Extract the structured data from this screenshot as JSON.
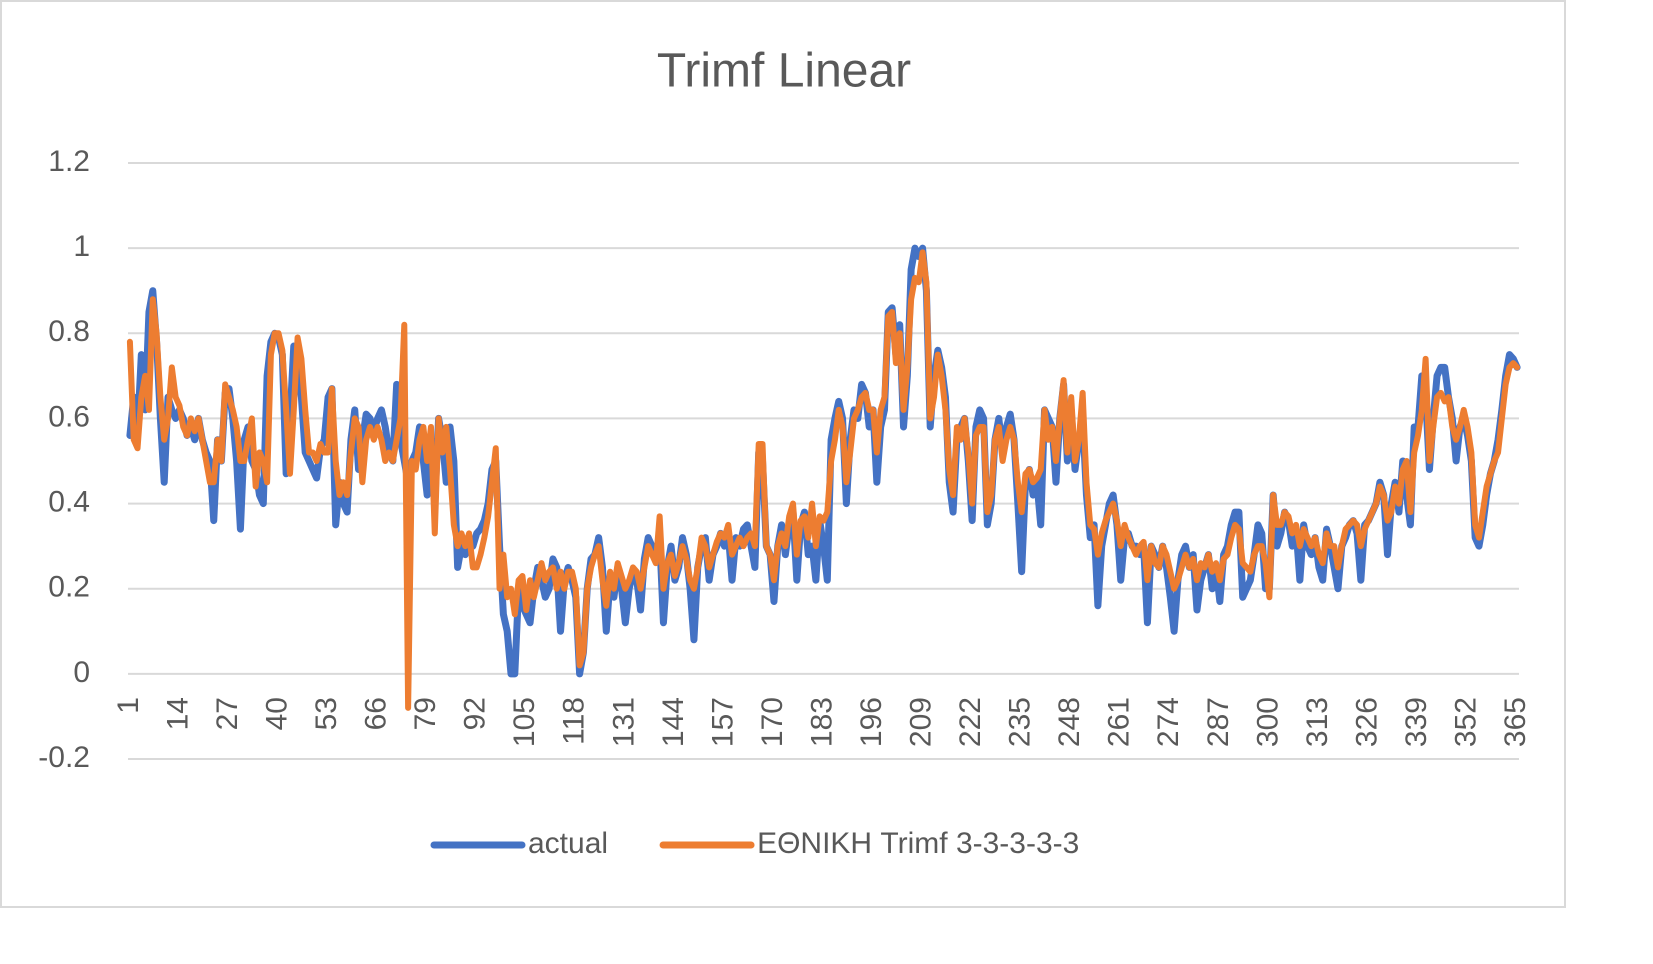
{
  "chart_data": {
    "type": "line",
    "title": "Trimf Linear",
    "categories": [
      "1",
      null,
      null,
      null,
      null,
      null,
      null,
      null,
      null,
      null,
      null,
      null,
      null,
      "14",
      null,
      null,
      null,
      null,
      null,
      null,
      null,
      null,
      null,
      null,
      null,
      null,
      "27",
      null,
      null,
      null,
      null,
      null,
      null,
      null,
      null,
      null,
      null,
      null,
      null,
      "40",
      null,
      null,
      null,
      null,
      null,
      null,
      null,
      null,
      null,
      null,
      null,
      null,
      "53",
      null,
      null,
      null,
      null,
      null,
      null,
      null,
      null,
      null,
      null,
      null,
      null,
      "66",
      null,
      null,
      null,
      null,
      null,
      null,
      null,
      null,
      null,
      null,
      null,
      null,
      "79",
      null,
      null,
      null,
      null,
      null,
      null,
      null,
      null,
      null,
      null,
      null,
      null,
      "92",
      null,
      null,
      null,
      null,
      null,
      null,
      null,
      null,
      null,
      null,
      null,
      null,
      "105",
      null,
      null,
      null,
      null,
      null,
      null,
      null,
      null,
      null,
      null,
      null,
      null,
      "118",
      null,
      null,
      null,
      null,
      null,
      null,
      null,
      null,
      null,
      null,
      null,
      null,
      "131",
      null,
      null,
      null,
      null,
      null,
      null,
      null,
      null,
      null,
      null,
      null,
      null,
      "144",
      null,
      null,
      null,
      null,
      null,
      null,
      null,
      null,
      null,
      null,
      null,
      null,
      "157",
      null,
      null,
      null,
      null,
      null,
      null,
      null,
      null,
      null,
      null,
      null,
      null,
      "170",
      null,
      null,
      null,
      null,
      null,
      null,
      null,
      null,
      null,
      null,
      null,
      null,
      "183",
      null,
      null,
      null,
      null,
      null,
      null,
      null,
      null,
      null,
      null,
      null,
      null,
      "196",
      null,
      null,
      null,
      null,
      null,
      null,
      null,
      null,
      null,
      null,
      null,
      null,
      "209",
      null,
      null,
      null,
      null,
      null,
      null,
      null,
      null,
      null,
      null,
      null,
      null,
      "222",
      null,
      null,
      null,
      null,
      null,
      null,
      null,
      null,
      null,
      null,
      null,
      null,
      "235",
      null,
      null,
      null,
      null,
      null,
      null,
      null,
      null,
      null,
      null,
      null,
      null,
      "248",
      null,
      null,
      null,
      null,
      null,
      null,
      null,
      null,
      null,
      null,
      null,
      null,
      "261",
      null,
      null,
      null,
      null,
      null,
      null,
      null,
      null,
      null,
      null,
      null,
      null,
      "274",
      null,
      null,
      null,
      null,
      null,
      null,
      null,
      null,
      null,
      null,
      null,
      null,
      "287",
      null,
      null,
      null,
      null,
      null,
      null,
      null,
      null,
      null,
      null,
      null,
      null,
      "300",
      null,
      null,
      null,
      null,
      null,
      null,
      null,
      null,
      null,
      null,
      null,
      null,
      "313",
      null,
      null,
      null,
      null,
      null,
      null,
      null,
      null,
      null,
      null,
      null,
      null,
      "326",
      null,
      null,
      null,
      null,
      null,
      null,
      null,
      null,
      null,
      null,
      null,
      null,
      "339",
      null,
      null,
      null,
      null,
      null,
      null,
      null,
      null,
      null,
      null,
      null,
      null,
      "352",
      null,
      null,
      null,
      null,
      null,
      null,
      null,
      null,
      null,
      null,
      null,
      null,
      "365"
    ],
    "series": [
      {
        "name": "actual",
        "color": "#4472c4",
        "values": [
          0.56,
          0.65,
          0.57,
          0.75,
          0.62,
          0.85,
          0.9,
          0.78,
          0.6,
          0.45,
          0.65,
          0.62,
          0.6,
          0.62,
          0.6,
          0.56,
          0.58,
          0.55,
          0.6,
          0.55,
          0.52,
          0.5,
          0.36,
          0.55,
          0.5,
          0.66,
          0.67,
          0.6,
          0.5,
          0.34,
          0.55,
          0.58,
          0.5,
          0.48,
          0.42,
          0.4,
          0.7,
          0.78,
          0.8,
          0.79,
          0.75,
          0.47,
          0.6,
          0.77,
          0.72,
          0.65,
          0.52,
          0.5,
          0.48,
          0.46,
          0.53,
          0.55,
          0.65,
          0.67,
          0.35,
          0.45,
          0.4,
          0.38,
          0.55,
          0.62,
          0.48,
          0.55,
          0.61,
          0.6,
          0.57,
          0.6,
          0.62,
          0.58,
          0.52,
          0.5,
          0.68,
          0.55,
          0.5,
          0.45,
          0.5,
          0.52,
          0.58,
          0.5,
          0.42,
          0.55,
          0.4,
          0.6,
          0.55,
          0.45,
          0.58,
          0.5,
          0.25,
          0.3,
          0.28,
          0.32,
          0.3,
          0.33,
          0.34,
          0.36,
          0.4,
          0.48,
          0.5,
          0.3,
          0.14,
          0.1,
          0.0,
          0.0,
          0.2,
          0.16,
          0.14,
          0.12,
          0.2,
          0.25,
          0.22,
          0.18,
          0.2,
          0.27,
          0.25,
          0.1,
          0.22,
          0.25,
          0.22,
          0.18,
          0.0,
          0.05,
          0.2,
          0.27,
          0.28,
          0.32,
          0.25,
          0.1,
          0.22,
          0.18,
          0.25,
          0.2,
          0.12,
          0.2,
          0.24,
          0.22,
          0.15,
          0.27,
          0.32,
          0.3,
          0.28,
          0.32,
          0.12,
          0.25,
          0.3,
          0.22,
          0.25,
          0.32,
          0.28,
          0.2,
          0.08,
          0.25,
          0.3,
          0.32,
          0.22,
          0.28,
          0.3,
          0.33,
          0.3,
          0.33,
          0.22,
          0.32,
          0.3,
          0.34,
          0.35,
          0.3,
          0.25,
          0.52,
          0.5,
          0.3,
          0.28,
          0.17,
          0.3,
          0.35,
          0.28,
          0.35,
          0.38,
          0.22,
          0.35,
          0.38,
          0.28,
          0.3,
          0.22,
          0.36,
          0.3,
          0.22,
          0.55,
          0.6,
          0.64,
          0.6,
          0.4,
          0.55,
          0.62,
          0.6,
          0.68,
          0.66,
          0.58,
          0.62,
          0.45,
          0.58,
          0.62,
          0.85,
          0.86,
          0.75,
          0.82,
          0.58,
          0.7,
          0.95,
          1.0,
          0.98,
          1.0,
          0.9,
          0.58,
          0.7,
          0.76,
          0.72,
          0.65,
          0.45,
          0.38,
          0.55,
          0.58,
          0.6,
          0.5,
          0.36,
          0.58,
          0.62,
          0.6,
          0.35,
          0.4,
          0.55,
          0.6,
          0.52,
          0.58,
          0.61,
          0.55,
          0.4,
          0.24,
          0.45,
          0.48,
          0.42,
          0.45,
          0.35,
          0.62,
          0.6,
          0.58,
          0.45,
          0.6,
          0.68,
          0.5,
          0.62,
          0.48,
          0.55,
          0.6,
          0.42,
          0.32,
          0.35,
          0.16,
          0.3,
          0.35,
          0.4,
          0.42,
          0.35,
          0.22,
          0.32,
          0.33,
          0.3,
          0.3,
          0.28,
          0.3,
          0.12,
          0.3,
          0.28,
          0.25,
          0.3,
          0.25,
          0.18,
          0.1,
          0.22,
          0.28,
          0.3,
          0.25,
          0.28,
          0.15,
          0.22,
          0.25,
          0.28,
          0.2,
          0.25,
          0.17,
          0.28,
          0.3,
          0.35,
          0.38,
          0.38,
          0.18,
          0.2,
          0.22,
          0.28,
          0.35,
          0.33,
          0.2,
          0.2,
          0.42,
          0.3,
          0.33,
          0.38,
          0.36,
          0.3,
          0.34,
          0.22,
          0.35,
          0.3,
          0.28,
          0.32,
          0.25,
          0.22,
          0.34,
          0.3,
          0.25,
          0.2,
          0.3,
          0.32,
          0.35,
          0.36,
          0.33,
          0.22,
          0.35,
          0.36,
          0.38,
          0.4,
          0.45,
          0.42,
          0.28,
          0.4,
          0.45,
          0.38,
          0.5,
          0.42,
          0.35,
          0.58,
          0.58,
          0.7,
          0.65,
          0.48,
          0.6,
          0.7,
          0.72,
          0.72,
          0.65,
          0.6,
          0.5,
          0.58,
          0.6,
          0.56,
          0.5,
          0.32,
          0.3,
          0.35,
          0.42,
          0.47,
          0.5,
          0.55,
          0.62,
          0.7,
          0.75,
          0.74,
          0.72
        ]
      },
      {
        "name": "ΕΘΝΙΚΗ Trimf 3-3-3-3-3",
        "color": "#ed7d31",
        "values": [
          0.78,
          0.55,
          0.53,
          0.65,
          0.7,
          0.62,
          0.88,
          0.8,
          0.65,
          0.55,
          0.6,
          0.72,
          0.65,
          0.63,
          0.58,
          0.56,
          0.6,
          0.57,
          0.6,
          0.55,
          0.5,
          0.45,
          0.45,
          0.55,
          0.5,
          0.68,
          0.65,
          0.62,
          0.58,
          0.5,
          0.5,
          0.55,
          0.6,
          0.44,
          0.52,
          0.5,
          0.45,
          0.75,
          0.8,
          0.8,
          0.76,
          0.62,
          0.47,
          0.62,
          0.79,
          0.74,
          0.62,
          0.52,
          0.52,
          0.5,
          0.54,
          0.52,
          0.52,
          0.67,
          0.5,
          0.42,
          0.45,
          0.42,
          0.52,
          0.6,
          0.58,
          0.45,
          0.55,
          0.58,
          0.55,
          0.58,
          0.55,
          0.5,
          0.52,
          0.5,
          0.55,
          0.6,
          0.82,
          -0.08,
          0.5,
          0.48,
          0.55,
          0.58,
          0.5,
          0.58,
          0.33,
          0.6,
          0.52,
          0.58,
          0.48,
          0.35,
          0.3,
          0.33,
          0.3,
          0.33,
          0.25,
          0.25,
          0.28,
          0.32,
          0.37,
          0.45,
          0.53,
          0.2,
          0.28,
          0.18,
          0.2,
          0.14,
          0.22,
          0.23,
          0.15,
          0.22,
          0.18,
          0.22,
          0.26,
          0.22,
          0.24,
          0.25,
          0.2,
          0.24,
          0.2,
          0.24,
          0.24,
          0.2,
          0.02,
          0.05,
          0.2,
          0.25,
          0.28,
          0.3,
          0.22,
          0.16,
          0.24,
          0.2,
          0.26,
          0.23,
          0.2,
          0.22,
          0.25,
          0.24,
          0.2,
          0.25,
          0.3,
          0.28,
          0.26,
          0.37,
          0.2,
          0.26,
          0.28,
          0.23,
          0.26,
          0.3,
          0.27,
          0.22,
          0.2,
          0.25,
          0.32,
          0.3,
          0.25,
          0.28,
          0.31,
          0.33,
          0.32,
          0.35,
          0.28,
          0.3,
          0.32,
          0.3,
          0.32,
          0.33,
          0.3,
          0.54,
          0.54,
          0.3,
          0.28,
          0.22,
          0.3,
          0.33,
          0.3,
          0.37,
          0.4,
          0.28,
          0.36,
          0.37,
          0.32,
          0.4,
          0.3,
          0.37,
          0.36,
          0.38,
          0.5,
          0.55,
          0.62,
          0.58,
          0.45,
          0.52,
          0.6,
          0.62,
          0.65,
          0.66,
          0.62,
          0.62,
          0.52,
          0.62,
          0.65,
          0.84,
          0.85,
          0.73,
          0.8,
          0.62,
          0.72,
          0.88,
          0.93,
          0.92,
          0.99,
          0.92,
          0.6,
          0.65,
          0.75,
          0.7,
          0.62,
          0.48,
          0.42,
          0.58,
          0.55,
          0.6,
          0.52,
          0.4,
          0.56,
          0.58,
          0.58,
          0.38,
          0.42,
          0.55,
          0.58,
          0.5,
          0.55,
          0.58,
          0.55,
          0.45,
          0.38,
          0.47,
          0.48,
          0.45,
          0.46,
          0.48,
          0.62,
          0.55,
          0.58,
          0.5,
          0.6,
          0.69,
          0.52,
          0.65,
          0.5,
          0.55,
          0.66,
          0.45,
          0.35,
          0.34,
          0.28,
          0.33,
          0.36,
          0.38,
          0.4,
          0.36,
          0.3,
          0.35,
          0.32,
          0.3,
          0.28,
          0.3,
          0.31,
          0.22,
          0.3,
          0.26,
          0.25,
          0.3,
          0.28,
          0.24,
          0.2,
          0.22,
          0.25,
          0.28,
          0.25,
          0.27,
          0.22,
          0.26,
          0.25,
          0.28,
          0.24,
          0.26,
          0.22,
          0.27,
          0.28,
          0.32,
          0.35,
          0.34,
          0.26,
          0.25,
          0.24,
          0.28,
          0.3,
          0.3,
          0.26,
          0.18,
          0.42,
          0.35,
          0.35,
          0.38,
          0.37,
          0.33,
          0.35,
          0.3,
          0.34,
          0.32,
          0.3,
          0.32,
          0.28,
          0.26,
          0.33,
          0.3,
          0.3,
          0.25,
          0.3,
          0.34,
          0.35,
          0.36,
          0.35,
          0.3,
          0.34,
          0.36,
          0.38,
          0.4,
          0.44,
          0.42,
          0.36,
          0.38,
          0.44,
          0.4,
          0.48,
          0.5,
          0.38,
          0.52,
          0.56,
          0.62,
          0.74,
          0.5,
          0.58,
          0.65,
          0.66,
          0.64,
          0.65,
          0.58,
          0.55,
          0.58,
          0.62,
          0.58,
          0.52,
          0.35,
          0.32,
          0.38,
          0.44,
          0.47,
          0.5,
          0.52,
          0.6,
          0.68,
          0.72,
          0.73,
          0.72
        ]
      }
    ],
    "ylim": [
      -0.2,
      1.2
    ],
    "yticks": [
      -0.2,
      0,
      0.2,
      0.4,
      0.6,
      0.8,
      1,
      1.2
    ],
    "grid": true,
    "legend": "bottom"
  }
}
